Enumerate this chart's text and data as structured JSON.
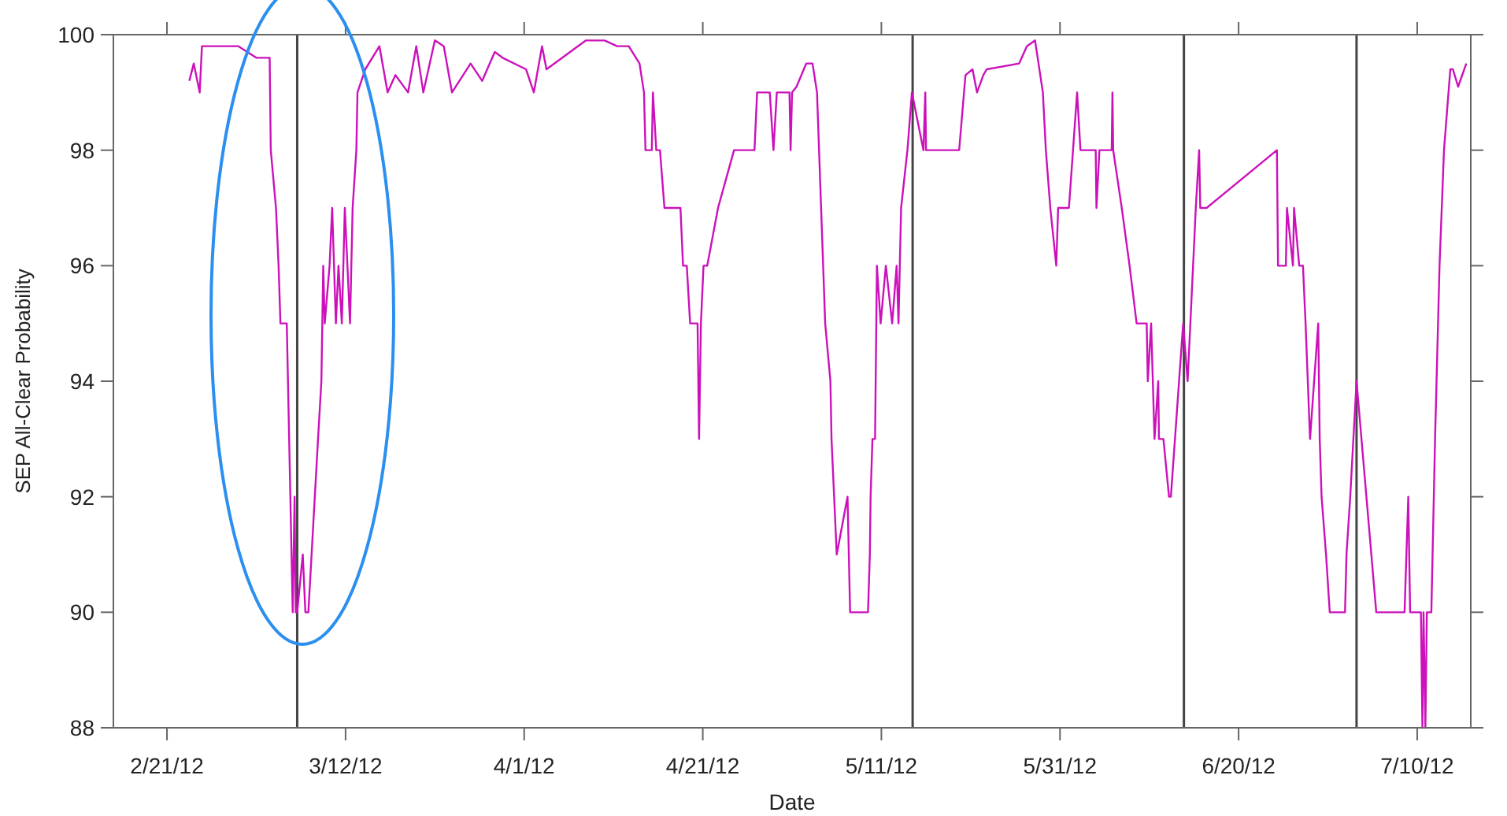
{
  "chart_data": {
    "type": "line",
    "xlabel": "Date",
    "ylabel": "SEP All-Clear Probability",
    "xlim": [
      "2012-02-15",
      "2012-07-16"
    ],
    "xticks": [
      {
        "value": "2012-02-21",
        "label": "2/21/12"
      },
      {
        "value": "2012-03-12",
        "label": "3/12/12"
      },
      {
        "value": "2012-04-01",
        "label": "4/1/12"
      },
      {
        "value": "2012-04-21",
        "label": "4/21/12"
      },
      {
        "value": "2012-05-11",
        "label": "5/11/12"
      },
      {
        "value": "2012-05-31",
        "label": "5/31/12"
      },
      {
        "value": "2012-06-20",
        "label": "6/20/12"
      },
      {
        "value": "2012-07-10",
        "label": "7/10/12"
      }
    ],
    "ylim": [
      88,
      100
    ],
    "yticks": [
      88,
      90,
      92,
      94,
      96,
      98,
      100
    ],
    "grid": false,
    "marker": "none",
    "line_style": "solid",
    "ref_lines": [
      {
        "axis": "x",
        "value": "2012-03-06T14:00",
        "color": "#444444"
      },
      {
        "axis": "x",
        "value": "2012-05-14T12:00",
        "color": "#444444"
      },
      {
        "axis": "x",
        "value": "2012-06-13T21:00",
        "color": "#444444"
      },
      {
        "axis": "x",
        "value": "2012-07-03T05:00",
        "color": "#444444"
      }
    ],
    "series": [
      {
        "color": "#cc11bb",
        "x": [
          "2012-02-23T12:00",
          "2012-02-24T00:00",
          "2012-02-24T16:00",
          "2012-02-24T22:00",
          "2012-02-29T00:00",
          "2012-03-02T00:00",
          "2012-03-03T12:00",
          "2012-03-03T15:00",
          "2012-03-04T05:00",
          "2012-03-04T12:00",
          "2012-03-04T17:00",
          "2012-03-05T10:00",
          "2012-03-06T02:00",
          "2012-03-06T07:00",
          "2012-03-06T10:00",
          "2012-03-06T14:00",
          "2012-03-07T05:00",
          "2012-03-07T12:00",
          "2012-03-07T20:00",
          "2012-03-08T22:00",
          "2012-03-09T07:00",
          "2012-03-09T12:00",
          "2012-03-09T16:00",
          "2012-03-10T05:00",
          "2012-03-10T12:00",
          "2012-03-10T22:00",
          "2012-03-11T05:00",
          "2012-03-11T14:00",
          "2012-03-11T22:00",
          "2012-03-12T12:00",
          "2012-03-12T19:00",
          "2012-03-13T05:00",
          "2012-03-13T08:00",
          "2012-03-14T05:00",
          "2012-03-15T19:00",
          "2012-03-16T17:00",
          "2012-03-17T14:00",
          "2012-03-19T00:00",
          "2012-03-19T22:00",
          "2012-03-20T17:00",
          "2012-03-22T00:00",
          "2012-03-23T00:00",
          "2012-03-23T22:00",
          "2012-03-26T00:00",
          "2012-03-27T07:00",
          "2012-03-28T17:00",
          "2012-03-29T14:00",
          "2012-04-01T05:00",
          "2012-04-02T02:00",
          "2012-04-03T00:00",
          "2012-04-03T12:00",
          "2012-04-07T22:00",
          "2012-04-10T00:00",
          "2012-04-11T10:00",
          "2012-04-12T17:00",
          "2012-04-13T22:00",
          "2012-04-14T10:00",
          "2012-04-14T14:00",
          "2012-04-15T07:00",
          "2012-04-15T10:00",
          "2012-04-15T19:00",
          "2012-04-16T05:00",
          "2012-04-16T17:00",
          "2012-04-18T12:00",
          "2012-04-18T19:00",
          "2012-04-19T05:00",
          "2012-04-19T14:00",
          "2012-04-20T10:00",
          "2012-04-20T14:00",
          "2012-04-20T19:00",
          "2012-04-21T02:00",
          "2012-04-21T12:00",
          "2012-04-22T17:00",
          "2012-04-24T12:00",
          "2012-04-26T19:00",
          "2012-04-27T02:00",
          "2012-04-28T12:00",
          "2012-04-28T22:00",
          "2012-04-29T07:00",
          "2012-04-30T17:00",
          "2012-04-30T20:00",
          "2012-05-01T00:00",
          "2012-05-01T12:00",
          "2012-05-02T14:00",
          "2012-05-03T07:00",
          "2012-05-03T19:00",
          "2012-05-04T17:00",
          "2012-05-05T07:00",
          "2012-05-05T10:00",
          "2012-05-06T00:00",
          "2012-05-07T05:00",
          "2012-05-07T12:00",
          "2012-05-09T12:00",
          "2012-05-09T17:00",
          "2012-05-09T19:00",
          "2012-05-10T00:00",
          "2012-05-10T07:00",
          "2012-05-10T12:00",
          "2012-05-10T22:00",
          "2012-05-11T12:00",
          "2012-05-12T05:00",
          "2012-05-12T17:00",
          "2012-05-12T22:00",
          "2012-05-13T05:00",
          "2012-05-13T22:00",
          "2012-05-14T10:00",
          "2012-05-15T17:00",
          "2012-05-15T22:00",
          "2012-05-16T00:00",
          "2012-05-19T17:00",
          "2012-05-20T10:00",
          "2012-05-21T05:00",
          "2012-05-21T17:00",
          "2012-05-22T10:00",
          "2012-05-22T19:00",
          "2012-05-26T10:00",
          "2012-05-27T07:00",
          "2012-05-28T05:00",
          "2012-05-29T02:00",
          "2012-05-29T10:00",
          "2012-05-29T22:00",
          "2012-05-30T14:00",
          "2012-05-30T19:00",
          "2012-06-01T00:00",
          "2012-06-01T22:00",
          "2012-06-02T07:00",
          "2012-06-04T00:00",
          "2012-06-04T02:00",
          "2012-06-04T10:00",
          "2012-06-05T19:00",
          "2012-06-05T21:00",
          "2012-06-05T23:00",
          "2012-06-06T22:00",
          "2012-06-07T19:00",
          "2012-06-08T14:00",
          "2012-06-09T17:00",
          "2012-06-09T20:00",
          "2012-06-10T05:00",
          "2012-06-10T14:00",
          "2012-06-11T00:00",
          "2012-06-11T02:00",
          "2012-06-11T14:00",
          "2012-06-12T05:00",
          "2012-06-12T10:00",
          "2012-06-13T19:00",
          "2012-06-14T07:00",
          "2012-06-15T05:00",
          "2012-06-15T14:00",
          "2012-06-15T17:00",
          "2012-06-16T10:00",
          "2012-06-24T07:00",
          "2012-06-24T10:00",
          "2012-06-25T07:00",
          "2012-06-25T10:00",
          "2012-06-26T02:00",
          "2012-06-26T05:00",
          "2012-06-26T19:00",
          "2012-06-27T05:00",
          "2012-06-27T12:00",
          "2012-06-28T00:00",
          "2012-06-28T22:00",
          "2012-06-29T02:00",
          "2012-06-29T07:00",
          "2012-06-29T19:00",
          "2012-06-30T05:00",
          "2012-07-01T22:00",
          "2012-07-02T02:00",
          "2012-07-02T12:00",
          "2012-07-03T05:00",
          "2012-07-05T10:00",
          "2012-07-08T14:00",
          "2012-07-09T00:00",
          "2012-07-09T05:00",
          "2012-07-10T10:00",
          "2012-07-10T14:00",
          "2012-07-10T17:00",
          "2012-07-10T22:00",
          "2012-07-11T02:00",
          "2012-07-11T14:00",
          "2012-07-12T00:00",
          "2012-07-12T12:00",
          "2012-07-13T00:00",
          "2012-07-13T17:00",
          "2012-07-14T00:00",
          "2012-07-14T14:00",
          "2012-07-15T12:00"
        ],
        "values": [
          99.2,
          99.5,
          99,
          99.8,
          99.8,
          99.6,
          99.6,
          98,
          97,
          96,
          95,
          95,
          90,
          92,
          90,
          90,
          91,
          90,
          90,
          93,
          94,
          96,
          95,
          96,
          97,
          95,
          96,
          95,
          97,
          95,
          97,
          98,
          99,
          99.4,
          99.8,
          99,
          99.3,
          99,
          99.8,
          99,
          99.9,
          99.8,
          99,
          99.5,
          99.2,
          99.7,
          99.6,
          99.4,
          99,
          99.8,
          99.4,
          99.9,
          99.9,
          99.8,
          99.8,
          99.5,
          99,
          98,
          98,
          99,
          98,
          98,
          97,
          97,
          96,
          96,
          95,
          95,
          93,
          95,
          96,
          96,
          97,
          98,
          98,
          99,
          99,
          98,
          99,
          99,
          98,
          99,
          99.1,
          99.5,
          99.5,
          99,
          95,
          94,
          93,
          91,
          92,
          90,
          90,
          91,
          92,
          93,
          93,
          96,
          95,
          96,
          95,
          96,
          95,
          97,
          98,
          99,
          98,
          99,
          98,
          98,
          99.3,
          99.4,
          99,
          99.3,
          99.4,
          99.5,
          99.8,
          99.9,
          99,
          98,
          97,
          96,
          97,
          97,
          99,
          98,
          98,
          97,
          98,
          98,
          99,
          98,
          97,
          96,
          95,
          95,
          94,
          95,
          93,
          94,
          93,
          93,
          92,
          92,
          95,
          94,
          97,
          98,
          97,
          97,
          98,
          96,
          96,
          97,
          96,
          97,
          96,
          96,
          95,
          93,
          95,
          93,
          92,
          91,
          90,
          90,
          91,
          92,
          94,
          90,
          90,
          92,
          90,
          90,
          88,
          90,
          88,
          90,
          90,
          93,
          96,
          98,
          99.4,
          99.4,
          99.1,
          99.5
        ]
      }
    ]
  }
}
